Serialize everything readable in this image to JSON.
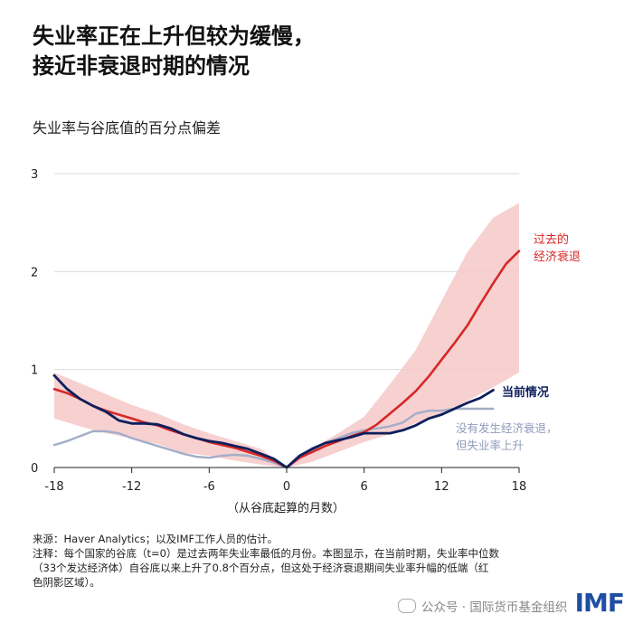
{
  "header": {
    "title_line1": "失业率正在上升但较为缓慢，",
    "title_line2": "接近非衰退时期的情况",
    "subtitle": "失业率与谷底值的百分点偏差"
  },
  "chart_data": {
    "type": "line",
    "xlabel": "（从谷底起算的月数）",
    "ylabel": "",
    "xlim": [
      -18,
      18
    ],
    "ylim": [
      0,
      3
    ],
    "xticks": [
      -18,
      -12,
      -6,
      0,
      6,
      12,
      18
    ],
    "yticks": [
      0,
      1,
      2,
      3
    ],
    "grid": "horizontal",
    "band": {
      "x": [
        -18,
        -16,
        -14,
        -12,
        -10,
        -8,
        -6,
        -4,
        -2,
        0,
        2,
        4,
        6,
        8,
        10,
        12,
        14,
        16,
        18
      ],
      "upper": [
        0.97,
        0.86,
        0.75,
        0.64,
        0.55,
        0.44,
        0.35,
        0.27,
        0.19,
        0.0,
        0.2,
        0.35,
        0.52,
        0.85,
        1.2,
        1.7,
        2.2,
        2.55,
        2.7
      ],
      "lower": [
        0.5,
        0.42,
        0.35,
        0.3,
        0.24,
        0.15,
        0.12,
        0.07,
        0.03,
        0.0,
        0.06,
        0.16,
        0.26,
        0.34,
        0.45,
        0.55,
        0.68,
        0.82,
        0.97
      ]
    },
    "series": [
      {
        "name": "过去的经济衰退",
        "color": "#d62828",
        "x": [
          -18,
          -17,
          -16,
          -15,
          -14,
          -13,
          -12,
          -11,
          -10,
          -9,
          -8,
          -7,
          -6,
          -5,
          -4,
          -3,
          -2,
          -1,
          0,
          1,
          2,
          3,
          4,
          5,
          6,
          7,
          8,
          9,
          10,
          11,
          12,
          13,
          14,
          15,
          16,
          17,
          18
        ],
        "y": [
          0.8,
          0.76,
          0.7,
          0.63,
          0.58,
          0.54,
          0.5,
          0.46,
          0.43,
          0.38,
          0.34,
          0.3,
          0.26,
          0.23,
          0.2,
          0.16,
          0.12,
          0.07,
          0.0,
          0.1,
          0.16,
          0.22,
          0.27,
          0.32,
          0.36,
          0.44,
          0.55,
          0.66,
          0.78,
          0.93,
          1.1,
          1.27,
          1.45,
          1.67,
          1.88,
          2.08,
          2.21
        ]
      },
      {
        "name": "当前情况",
        "color": "#0d1f5c",
        "x": [
          -18,
          -17,
          -16,
          -15,
          -14,
          -13,
          -12,
          -11,
          -10,
          -9,
          -8,
          -7,
          -6,
          -5,
          -4,
          -3,
          -2,
          -1,
          0,
          1,
          2,
          3,
          4,
          5,
          6,
          7,
          8,
          9,
          10,
          11,
          12,
          13,
          14,
          15,
          16
        ],
        "y": [
          0.94,
          0.8,
          0.7,
          0.63,
          0.57,
          0.48,
          0.45,
          0.45,
          0.44,
          0.4,
          0.34,
          0.3,
          0.27,
          0.25,
          0.22,
          0.19,
          0.14,
          0.09,
          0.0,
          0.12,
          0.19,
          0.25,
          0.28,
          0.31,
          0.35,
          0.35,
          0.35,
          0.38,
          0.43,
          0.5,
          0.54,
          0.6,
          0.66,
          0.71,
          0.79
        ]
      },
      {
        "name": "没有发生经济衰退，但失业率上升",
        "color": "#a3adc8",
        "x": [
          -18,
          -17,
          -16,
          -15,
          -14,
          -13,
          -12,
          -11,
          -10,
          -9,
          -8,
          -7,
          -6,
          -5,
          -4,
          -3,
          -2,
          -1,
          0,
          1,
          2,
          3,
          4,
          5,
          6,
          7,
          8,
          9,
          10,
          11,
          12,
          13,
          14,
          15,
          16
        ],
        "y": [
          0.23,
          0.27,
          0.32,
          0.37,
          0.37,
          0.35,
          0.3,
          0.26,
          0.22,
          0.18,
          0.14,
          0.11,
          0.1,
          0.12,
          0.13,
          0.12,
          0.09,
          0.05,
          0.0,
          0.12,
          0.2,
          0.25,
          0.3,
          0.35,
          0.38,
          0.4,
          0.42,
          0.46,
          0.55,
          0.58,
          0.58,
          0.6,
          0.6,
          0.6,
          0.6
        ]
      }
    ],
    "labels": {
      "past_line1": "过去的",
      "past_line2": "经济衰退",
      "current": "当前情况",
      "nonrec_line1": "没有发生经济衰退，",
      "nonrec_line2": "但失业率上升"
    }
  },
  "notes": {
    "source": "来源：Haver Analytics；以及IMF工作人员的估计。",
    "note_line1": "注释：每个国家的谷底（t=0）是过去两年失业率最低的月份。本图显示，在当前时期，失业率中位数",
    "note_line2": "（33个发达经济体）自谷底以来上升了0.8个百分点，但这处于经济衰退期间失业率升幅的低端（红",
    "note_line3": "色阴影区域）。"
  },
  "footer": {
    "wechat": "公众号 · 国际货币基金组织",
    "logo": "IMF",
    "logo_color": "#1f4ea3"
  }
}
